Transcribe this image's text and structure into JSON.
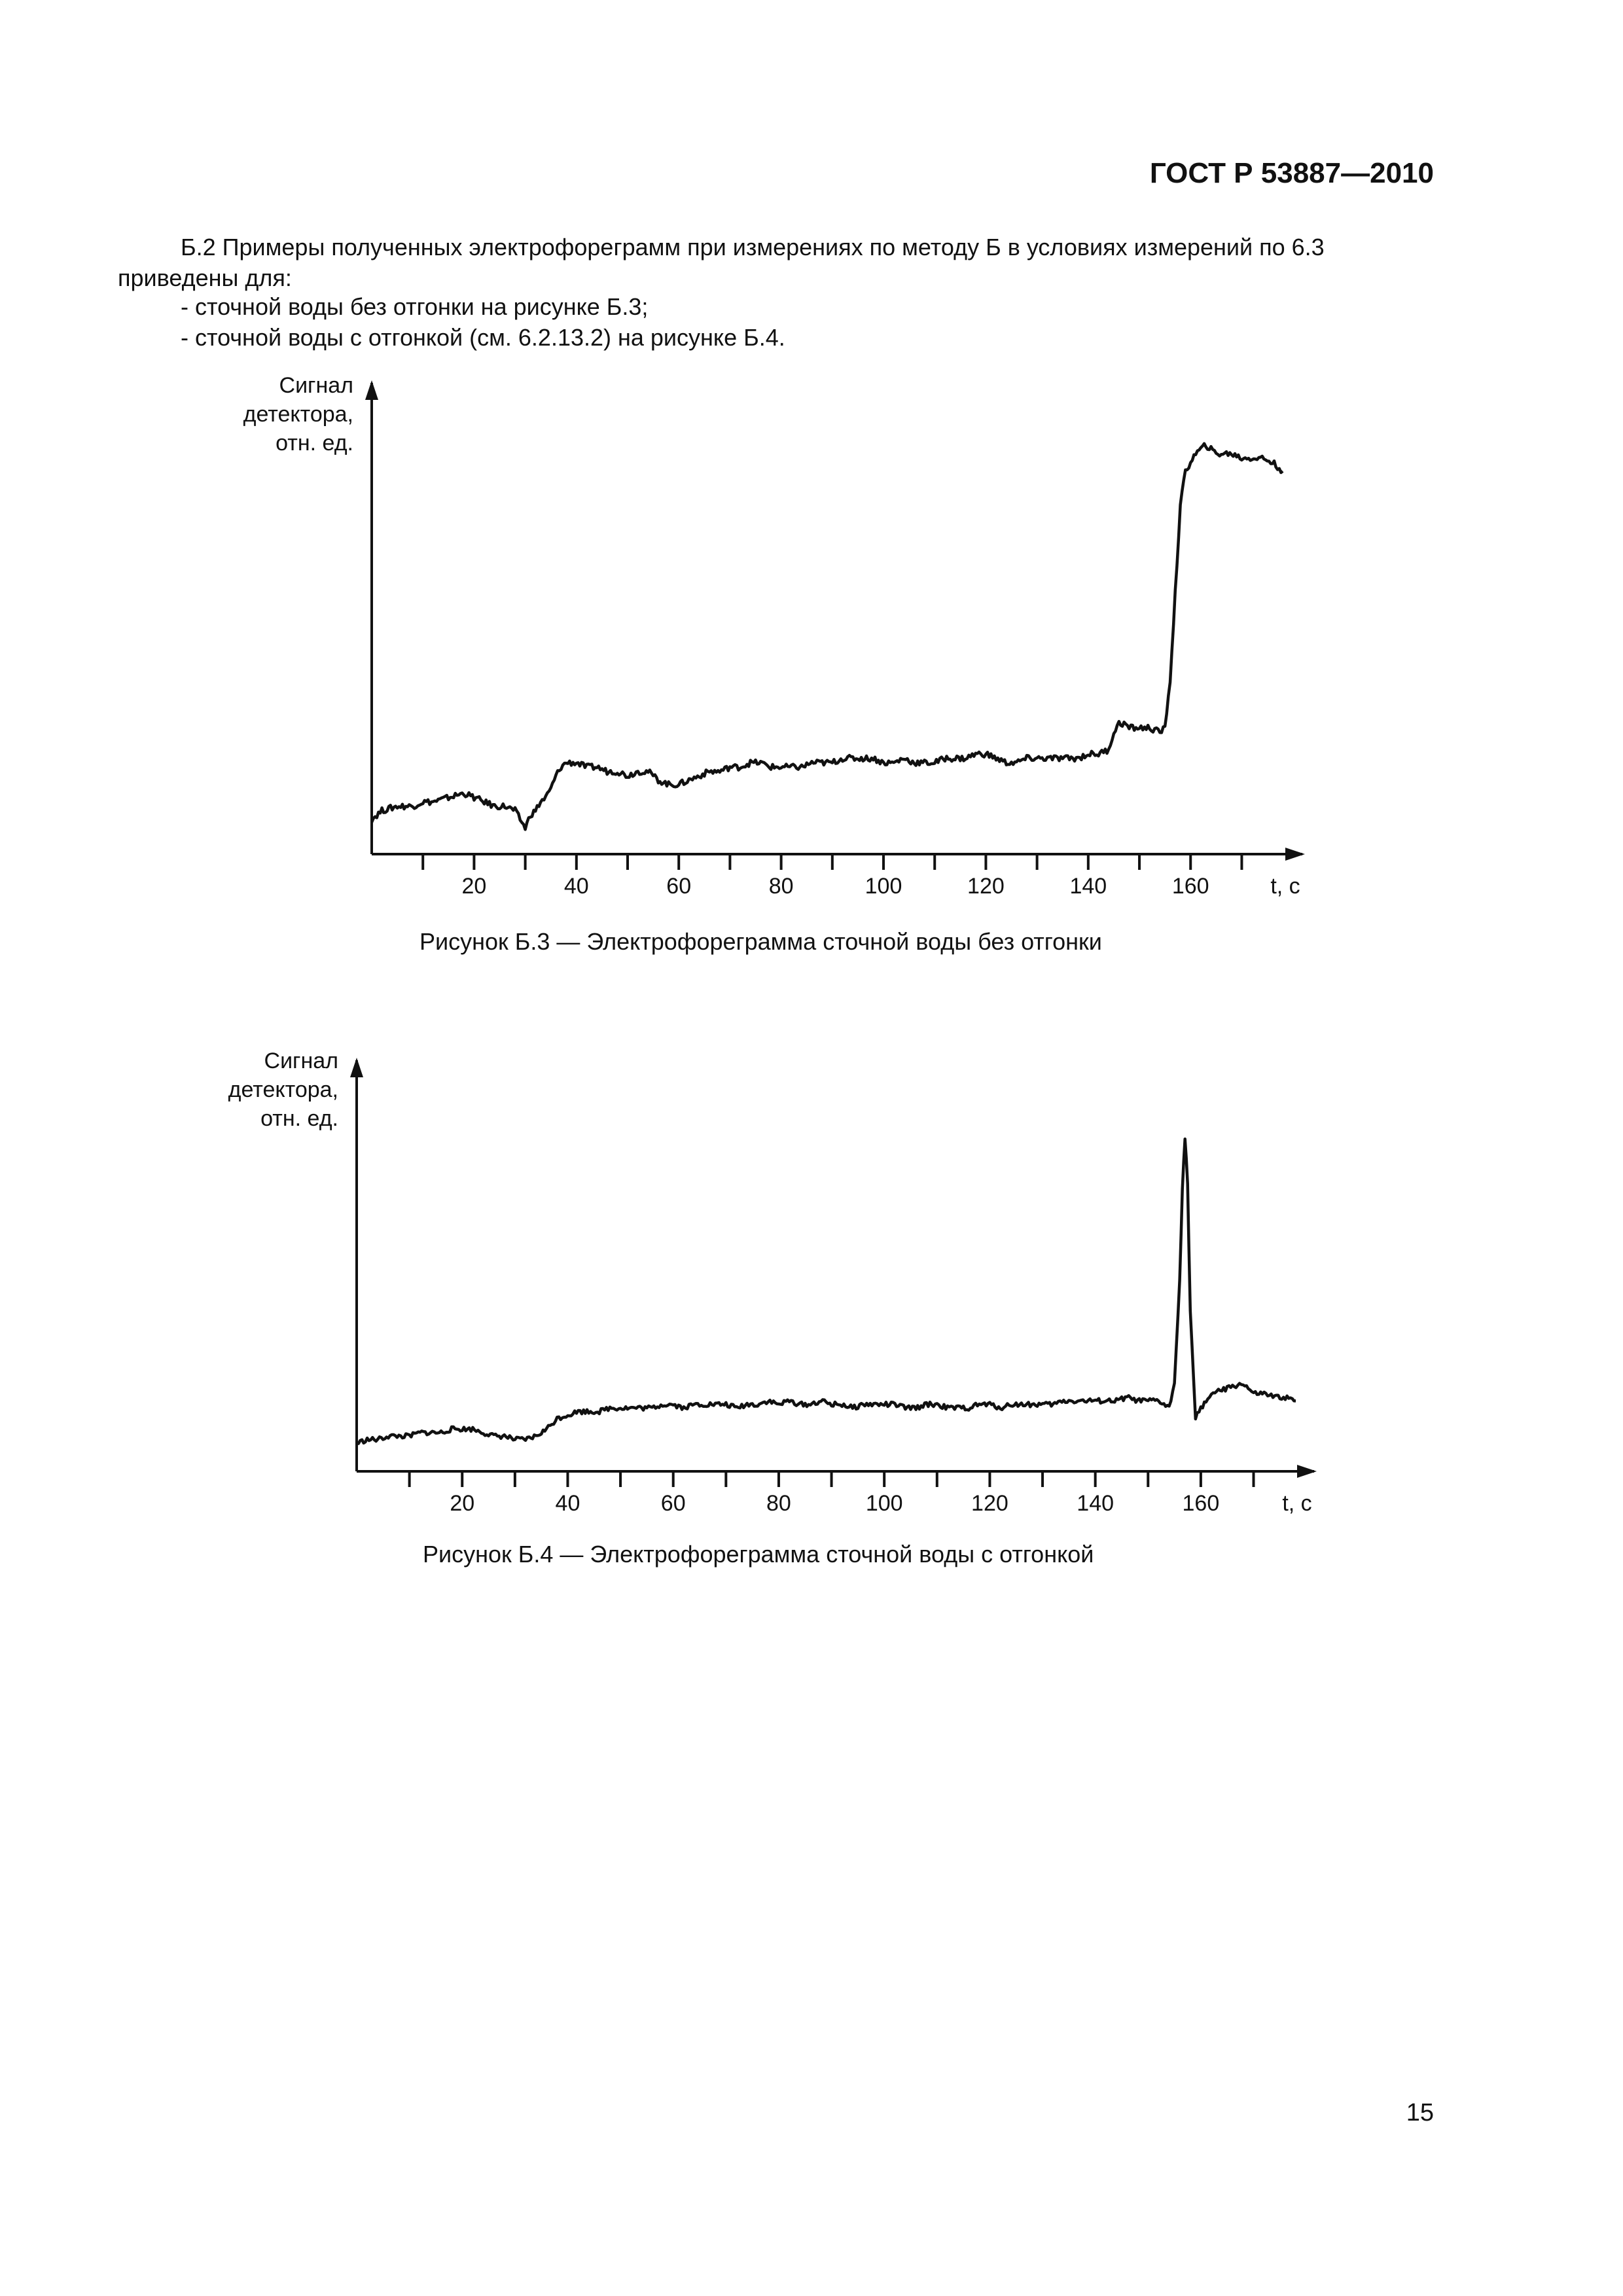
{
  "header": {
    "standard": "ГОСТ Р 53887—2010"
  },
  "text": {
    "paragraph": "Б.2 Примеры полученных электрофореграмм при измерениях по методу Б в условиях измерений по 6.3 приведены для:",
    "item1": "- сточной воды без отгонки на рисунке Б.3;",
    "item2": "- сточной воды с отгонкой (см. 6.2.13.2) на рисунке Б.4."
  },
  "page_number": "15",
  "chart_data": [
    {
      "type": "line",
      "caption": "Рисунок Б.3 — Электрофореграмма сточной воды без отгонки",
      "ylabel": [
        "Сигнал",
        "детектора,",
        "отн. ед."
      ],
      "xlabel": "t, c",
      "xlim": [
        0,
        178
      ],
      "ylim": [
        0,
        100
      ],
      "xticks": [
        10,
        20,
        30,
        40,
        50,
        60,
        70,
        80,
        90,
        100,
        110,
        120,
        130,
        140,
        150,
        160,
        170
      ],
      "xtick_labels": [
        "20",
        "40",
        "60",
        "80",
        "100",
        "120",
        "140",
        "160"
      ],
      "grid": false,
      "series": [
        {
          "x": [
            0,
            2,
            5,
            8,
            10,
            12,
            15,
            18,
            20,
            22,
            24,
            26,
            28,
            29,
            30,
            31,
            32,
            33,
            34,
            35,
            36,
            37,
            38,
            40,
            42,
            44,
            46,
            48,
            50,
            52,
            54,
            56,
            58,
            60,
            62,
            64,
            66,
            68,
            70,
            72,
            74,
            76,
            78,
            80,
            82,
            84,
            86,
            88,
            90,
            92,
            94,
            96,
            98,
            100,
            102,
            104,
            106,
            108,
            110,
            112,
            114,
            116,
            118,
            120,
            122,
            124,
            126,
            128,
            130,
            132,
            134,
            136,
            138,
            140,
            142,
            144,
            145,
            146,
            147,
            148,
            150,
            152,
            154,
            155,
            156,
            157,
            158,
            159,
            160,
            161,
            162,
            163,
            164,
            165,
            166,
            168,
            170,
            172,
            174,
            176,
            177,
            178
          ],
          "y": [
            8,
            10,
            11,
            11,
            12,
            12,
            13,
            14,
            13,
            12,
            11,
            11,
            10,
            8,
            6,
            9,
            10,
            12,
            13,
            15,
            18,
            20,
            21,
            21,
            20,
            20,
            19,
            19,
            18,
            19,
            19,
            17,
            16,
            16,
            17,
            18,
            19,
            19,
            20,
            20,
            21,
            21,
            20,
            20,
            20,
            20,
            21,
            21,
            21,
            22,
            22,
            22,
            22,
            21,
            21,
            22,
            21,
            21,
            21,
            22,
            22,
            22,
            23,
            23,
            22,
            21,
            21,
            22,
            22,
            22,
            22,
            22,
            22,
            23,
            23,
            24,
            28,
            30,
            30,
            29,
            29,
            29,
            28,
            29,
            40,
            60,
            80,
            88,
            90,
            92,
            93,
            94,
            93,
            92,
            92,
            92,
            91,
            91,
            91,
            90,
            89,
            88
          ]
        }
      ]
    },
    {
      "type": "line",
      "caption": "Рисунок Б.4 — Электрофореграмма сточной воды с отгонкой",
      "ylabel": [
        "Сигнал",
        "детектора,",
        "отн. ед."
      ],
      "xlabel": "t, c",
      "xlim": [
        0,
        178
      ],
      "ylim": [
        0,
        100
      ],
      "xticks": [
        10,
        20,
        30,
        40,
        50,
        60,
        70,
        80,
        90,
        100,
        110,
        120,
        130,
        140,
        150,
        160,
        170
      ],
      "xtick_labels": [
        "20",
        "40",
        "60",
        "80",
        "100",
        "120",
        "140",
        "160"
      ],
      "grid": false,
      "series": [
        {
          "x": [
            0,
            2,
            4,
            6,
            8,
            10,
            12,
            14,
            16,
            18,
            20,
            22,
            24,
            26,
            28,
            30,
            32,
            34,
            36,
            38,
            40,
            42,
            44,
            46,
            48,
            50,
            52,
            54,
            56,
            58,
            60,
            62,
            64,
            66,
            68,
            70,
            72,
            74,
            76,
            78,
            80,
            82,
            84,
            86,
            88,
            90,
            92,
            94,
            96,
            98,
            100,
            102,
            104,
            106,
            108,
            110,
            112,
            114,
            116,
            118,
            120,
            122,
            124,
            126,
            128,
            130,
            132,
            134,
            136,
            138,
            140,
            142,
            144,
            146,
            148,
            150,
            152,
            153,
            154,
            155,
            156,
            156.5,
            157,
            157.5,
            158,
            159,
            160,
            161,
            162,
            164,
            166,
            168,
            170,
            172,
            174,
            176,
            178
          ],
          "y": [
            8,
            9,
            9,
            10,
            10,
            10,
            11,
            11,
            11,
            12,
            12,
            12,
            11,
            10,
            10,
            9,
            9,
            10,
            12,
            15,
            16,
            17,
            17,
            17,
            18,
            18,
            18,
            18,
            18,
            19,
            19,
            18,
            19,
            19,
            19,
            19,
            18,
            19,
            19,
            20,
            19,
            20,
            19,
            19,
            20,
            19,
            19,
            18,
            19,
            19,
            19,
            19,
            18,
            18,
            19,
            19,
            18,
            18,
            18,
            19,
            19,
            18,
            19,
            19,
            19,
            19,
            19,
            20,
            20,
            20,
            20,
            20,
            20,
            21,
            20,
            20,
            20,
            19,
            18,
            25,
            55,
            80,
            95,
            82,
            45,
            15,
            18,
            20,
            22,
            23,
            24,
            25,
            22,
            22,
            21,
            21,
            20
          ]
        }
      ]
    }
  ]
}
